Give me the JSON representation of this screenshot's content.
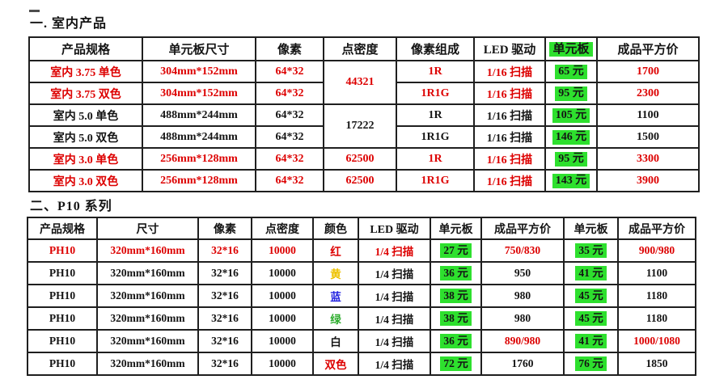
{
  "colors": {
    "red": "#dd0000",
    "black": "#141414",
    "yellow": "#eec200",
    "blue": "#2323e0",
    "green": "#2fae2f",
    "highlight_bg": "#2ee02e"
  },
  "section1": {
    "title": "一. 室内产品",
    "table": {
      "headers": [
        {
          "t": "产品规格"
        },
        {
          "t": "单元板尺寸"
        },
        {
          "t": "像素"
        },
        {
          "t": "点密度"
        },
        {
          "t": "像素组成"
        },
        {
          "t": "LED 驱动"
        },
        {
          "t": "单元板",
          "hl": true
        },
        {
          "t": "成品平方价"
        }
      ],
      "rows": [
        [
          {
            "t": "室内 3.75 单色",
            "c": "red"
          },
          {
            "t": "304mm*152mm",
            "c": "red"
          },
          {
            "t": "64*32",
            "c": "red"
          },
          {
            "t": "44321",
            "c": "red",
            "rs": 2
          },
          {
            "t": "1R",
            "c": "red"
          },
          {
            "t": "1/16 扫描",
            "c": "red"
          },
          {
            "t": "65 元",
            "hl": true
          },
          {
            "t": "1700",
            "c": "red"
          }
        ],
        [
          {
            "t": "室内 3.75 双色",
            "c": "red"
          },
          {
            "t": "304mm*152mm",
            "c": "red"
          },
          {
            "t": "64*32",
            "c": "red"
          },
          {
            "t": "1R1G",
            "c": "red"
          },
          {
            "t": "1/16 扫描",
            "c": "red"
          },
          {
            "t": "95 元",
            "hl": true
          },
          {
            "t": "2300",
            "c": "red"
          }
        ],
        [
          {
            "t": "室内 5.0 单色",
            "c": "black"
          },
          {
            "t": "488mm*244mm",
            "c": "black"
          },
          {
            "t": "64*32",
            "c": "black"
          },
          {
            "t": "17222",
            "c": "black",
            "rs": 2
          },
          {
            "t": "1R",
            "c": "black"
          },
          {
            "t": "1/16 扫描",
            "c": "black"
          },
          {
            "t": "105 元",
            "hl": true
          },
          {
            "t": "1100",
            "c": "black"
          }
        ],
        [
          {
            "t": "室内 5.0 双色",
            "c": "black"
          },
          {
            "t": "488mm*244mm",
            "c": "black"
          },
          {
            "t": "64*32",
            "c": "black"
          },
          {
            "t": "1R1G",
            "c": "black"
          },
          {
            "t": "1/16 扫描",
            "c": "black"
          },
          {
            "t": "146 元",
            "hl": true
          },
          {
            "t": "1500",
            "c": "black"
          }
        ],
        [
          {
            "t": "室内 3.0 单色",
            "c": "red"
          },
          {
            "t": "256mm*128mm",
            "c": "red"
          },
          {
            "t": "64*32",
            "c": "red"
          },
          {
            "t": "62500",
            "c": "red"
          },
          {
            "t": "1R",
            "c": "red"
          },
          {
            "t": "1/16 扫描",
            "c": "red"
          },
          {
            "t": "95 元",
            "hl": true
          },
          {
            "t": "3300",
            "c": "red"
          }
        ],
        [
          {
            "t": "室内 3.0 双色",
            "c": "red"
          },
          {
            "t": "256mm*128mm",
            "c": "red"
          },
          {
            "t": "64*32",
            "c": "red"
          },
          {
            "t": "62500",
            "c": "red"
          },
          {
            "t": "1R1G",
            "c": "red"
          },
          {
            "t": "1/16 扫描",
            "c": "red"
          },
          {
            "t": "143 元",
            "hl": true
          },
          {
            "t": "3900",
            "c": "red"
          }
        ]
      ]
    }
  },
  "section2": {
    "title": "二、P10 系列",
    "table": {
      "headers": [
        {
          "t": "产品规格"
        },
        {
          "t": "尺寸"
        },
        {
          "t": "像素"
        },
        {
          "t": "点密度"
        },
        {
          "t": "颜色"
        },
        {
          "t": "LED 驱动"
        },
        {
          "t": "单元板"
        },
        {
          "t": "成品平方价"
        },
        {
          "t": "单元板"
        },
        {
          "t": "成品平方价"
        }
      ],
      "rows": [
        [
          {
            "t": "PH10",
            "c": "red"
          },
          {
            "t": "320mm*160mm",
            "c": "red"
          },
          {
            "t": "32*16",
            "c": "red"
          },
          {
            "t": "10000",
            "c": "red"
          },
          {
            "t": "红",
            "c": "red"
          },
          {
            "t": "1/4 扫描",
            "c": "red"
          },
          {
            "t": "27 元",
            "hl": true
          },
          {
            "t": "750/830",
            "c": "red"
          },
          {
            "t": "35 元",
            "hl": true
          },
          {
            "t": "900/980",
            "c": "red"
          }
        ],
        [
          {
            "t": "PH10",
            "c": "black"
          },
          {
            "t": "320mm*160mm",
            "c": "black"
          },
          {
            "t": "32*16",
            "c": "black"
          },
          {
            "t": "10000",
            "c": "black"
          },
          {
            "t": "黄",
            "c": "yellow"
          },
          {
            "t": "1/4 扫描",
            "c": "black"
          },
          {
            "t": "36 元",
            "hl": true
          },
          {
            "t": "950",
            "c": "black"
          },
          {
            "t": "41 元",
            "hl": true
          },
          {
            "t": "1100",
            "c": "black"
          }
        ],
        [
          {
            "t": "PH10",
            "c": "black"
          },
          {
            "t": "320mm*160mm",
            "c": "black"
          },
          {
            "t": "32*16",
            "c": "black"
          },
          {
            "t": "10000",
            "c": "black"
          },
          {
            "t": "蓝",
            "c": "blue"
          },
          {
            "t": "1/4 扫描",
            "c": "black"
          },
          {
            "t": "38 元",
            "hl": true
          },
          {
            "t": "980",
            "c": "black"
          },
          {
            "t": "45 元",
            "hl": true
          },
          {
            "t": "1180",
            "c": "black"
          }
        ],
        [
          {
            "t": "PH10",
            "c": "black"
          },
          {
            "t": "320mm*160mm",
            "c": "black"
          },
          {
            "t": "32*16",
            "c": "black"
          },
          {
            "t": "10000",
            "c": "black"
          },
          {
            "t": "绿",
            "c": "green"
          },
          {
            "t": "1/4 扫描",
            "c": "black"
          },
          {
            "t": "38 元",
            "hl": true
          },
          {
            "t": "980",
            "c": "black"
          },
          {
            "t": "45 元",
            "hl": true
          },
          {
            "t": "1180",
            "c": "black"
          }
        ],
        [
          {
            "t": "PH10",
            "c": "black"
          },
          {
            "t": "320mm*160mm",
            "c": "black"
          },
          {
            "t": "32*16",
            "c": "black"
          },
          {
            "t": "10000",
            "c": "black"
          },
          {
            "t": "白",
            "c": "black"
          },
          {
            "t": "1/4 扫描",
            "c": "black"
          },
          {
            "t": "36 元",
            "hl": true
          },
          {
            "t": "890/980",
            "c": "red"
          },
          {
            "t": "41 元",
            "hl": true
          },
          {
            "t": "1000/1080",
            "c": "red"
          }
        ],
        [
          {
            "t": "PH10",
            "c": "black"
          },
          {
            "t": "320mm*160mm",
            "c": "black"
          },
          {
            "t": "32*16",
            "c": "black"
          },
          {
            "t": "10000",
            "c": "black"
          },
          {
            "t": "双色",
            "c": "red"
          },
          {
            "t": "1/4 扫描",
            "c": "black"
          },
          {
            "t": "72 元",
            "hl": true
          },
          {
            "t": "1760",
            "c": "black"
          },
          {
            "t": "76 元",
            "hl": true
          },
          {
            "t": "1850",
            "c": "black"
          }
        ]
      ]
    }
  }
}
